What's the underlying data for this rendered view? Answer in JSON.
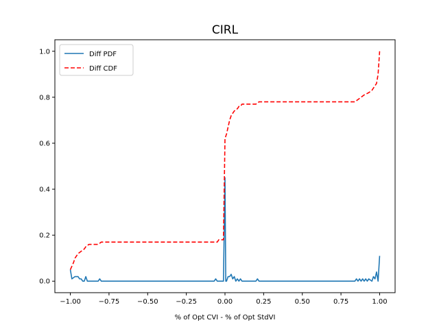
{
  "chart_data": {
    "type": "line",
    "title": "CIRL",
    "xlabel": "% of Opt CVI - % of Opt StdVI",
    "ylabel": "",
    "xlim": [
      -1.1,
      1.1
    ],
    "ylim": [
      -0.05,
      1.05
    ],
    "xticks": [
      -1.0,
      -0.75,
      -0.5,
      -0.25,
      0.0,
      0.25,
      0.5,
      0.75,
      1.0
    ],
    "xtick_labels": [
      "−1.00",
      "−0.75",
      "−0.50",
      "−0.25",
      "0.00",
      "0.25",
      "0.50",
      "0.75",
      "1.00"
    ],
    "yticks": [
      0.0,
      0.2,
      0.4,
      0.6,
      0.8,
      1.0
    ],
    "ytick_labels": [
      "0.0",
      "0.2",
      "0.4",
      "0.6",
      "0.8",
      "1.0"
    ],
    "grid": false,
    "legend": "upper-left",
    "series": [
      {
        "name": "Diff PDF",
        "color": "#1f77b4",
        "style": "solid",
        "x": [
          -1.0,
          -0.99,
          -0.97,
          -0.95,
          -0.94,
          -0.93,
          -0.92,
          -0.91,
          -0.9,
          -0.89,
          -0.88,
          -0.82,
          -0.81,
          -0.8,
          -0.6,
          -0.4,
          -0.2,
          -0.07,
          -0.06,
          -0.05,
          -0.01,
          0.0,
          0.005,
          0.01,
          0.02,
          0.03,
          0.04,
          0.05,
          0.06,
          0.07,
          0.08,
          0.09,
          0.1,
          0.11,
          0.2,
          0.21,
          0.22,
          0.4,
          0.6,
          0.84,
          0.85,
          0.86,
          0.87,
          0.88,
          0.89,
          0.9,
          0.91,
          0.92,
          0.93,
          0.95,
          0.96,
          0.97,
          0.98,
          0.99,
          1.0
        ],
        "y": [
          0.05,
          0.01,
          0.02,
          0.02,
          0.01,
          0.01,
          0.0,
          0.0,
          0.02,
          0.0,
          0.0,
          0.0,
          0.01,
          0.0,
          0.0,
          0.0,
          0.0,
          0.0,
          0.01,
          0.0,
          0.0,
          0.45,
          0.0,
          0.0,
          0.02,
          0.02,
          0.03,
          0.01,
          0.02,
          0.0,
          0.01,
          0.0,
          0.01,
          0.0,
          0.0,
          0.01,
          0.0,
          0.0,
          0.0,
          0.0,
          0.01,
          0.0,
          0.01,
          0.0,
          0.01,
          0.0,
          0.01,
          0.0,
          0.01,
          0.0,
          0.02,
          0.01,
          0.04,
          0.0,
          0.11
        ]
      },
      {
        "name": "Diff CDF",
        "color": "#ff0000",
        "style": "dashed",
        "x": [
          -1.0,
          -0.98,
          -0.97,
          -0.95,
          -0.93,
          -0.91,
          -0.9,
          -0.88,
          -0.82,
          -0.8,
          -0.6,
          -0.4,
          -0.2,
          -0.05,
          -0.04,
          -0.01,
          0.0,
          0.005,
          0.01,
          0.02,
          0.03,
          0.04,
          0.05,
          0.06,
          0.08,
          0.09,
          0.1,
          0.11,
          0.13,
          0.2,
          0.22,
          0.4,
          0.6,
          0.84,
          0.86,
          0.88,
          0.9,
          0.93,
          0.95,
          0.96,
          0.98,
          0.99,
          1.0
        ],
        "y": [
          0.05,
          0.08,
          0.1,
          0.12,
          0.13,
          0.14,
          0.15,
          0.16,
          0.16,
          0.17,
          0.17,
          0.17,
          0.17,
          0.17,
          0.18,
          0.18,
          0.62,
          0.63,
          0.64,
          0.67,
          0.7,
          0.72,
          0.73,
          0.74,
          0.75,
          0.76,
          0.76,
          0.77,
          0.77,
          0.77,
          0.78,
          0.78,
          0.78,
          0.78,
          0.79,
          0.8,
          0.81,
          0.82,
          0.83,
          0.84,
          0.86,
          0.9,
          1.0
        ]
      }
    ]
  }
}
